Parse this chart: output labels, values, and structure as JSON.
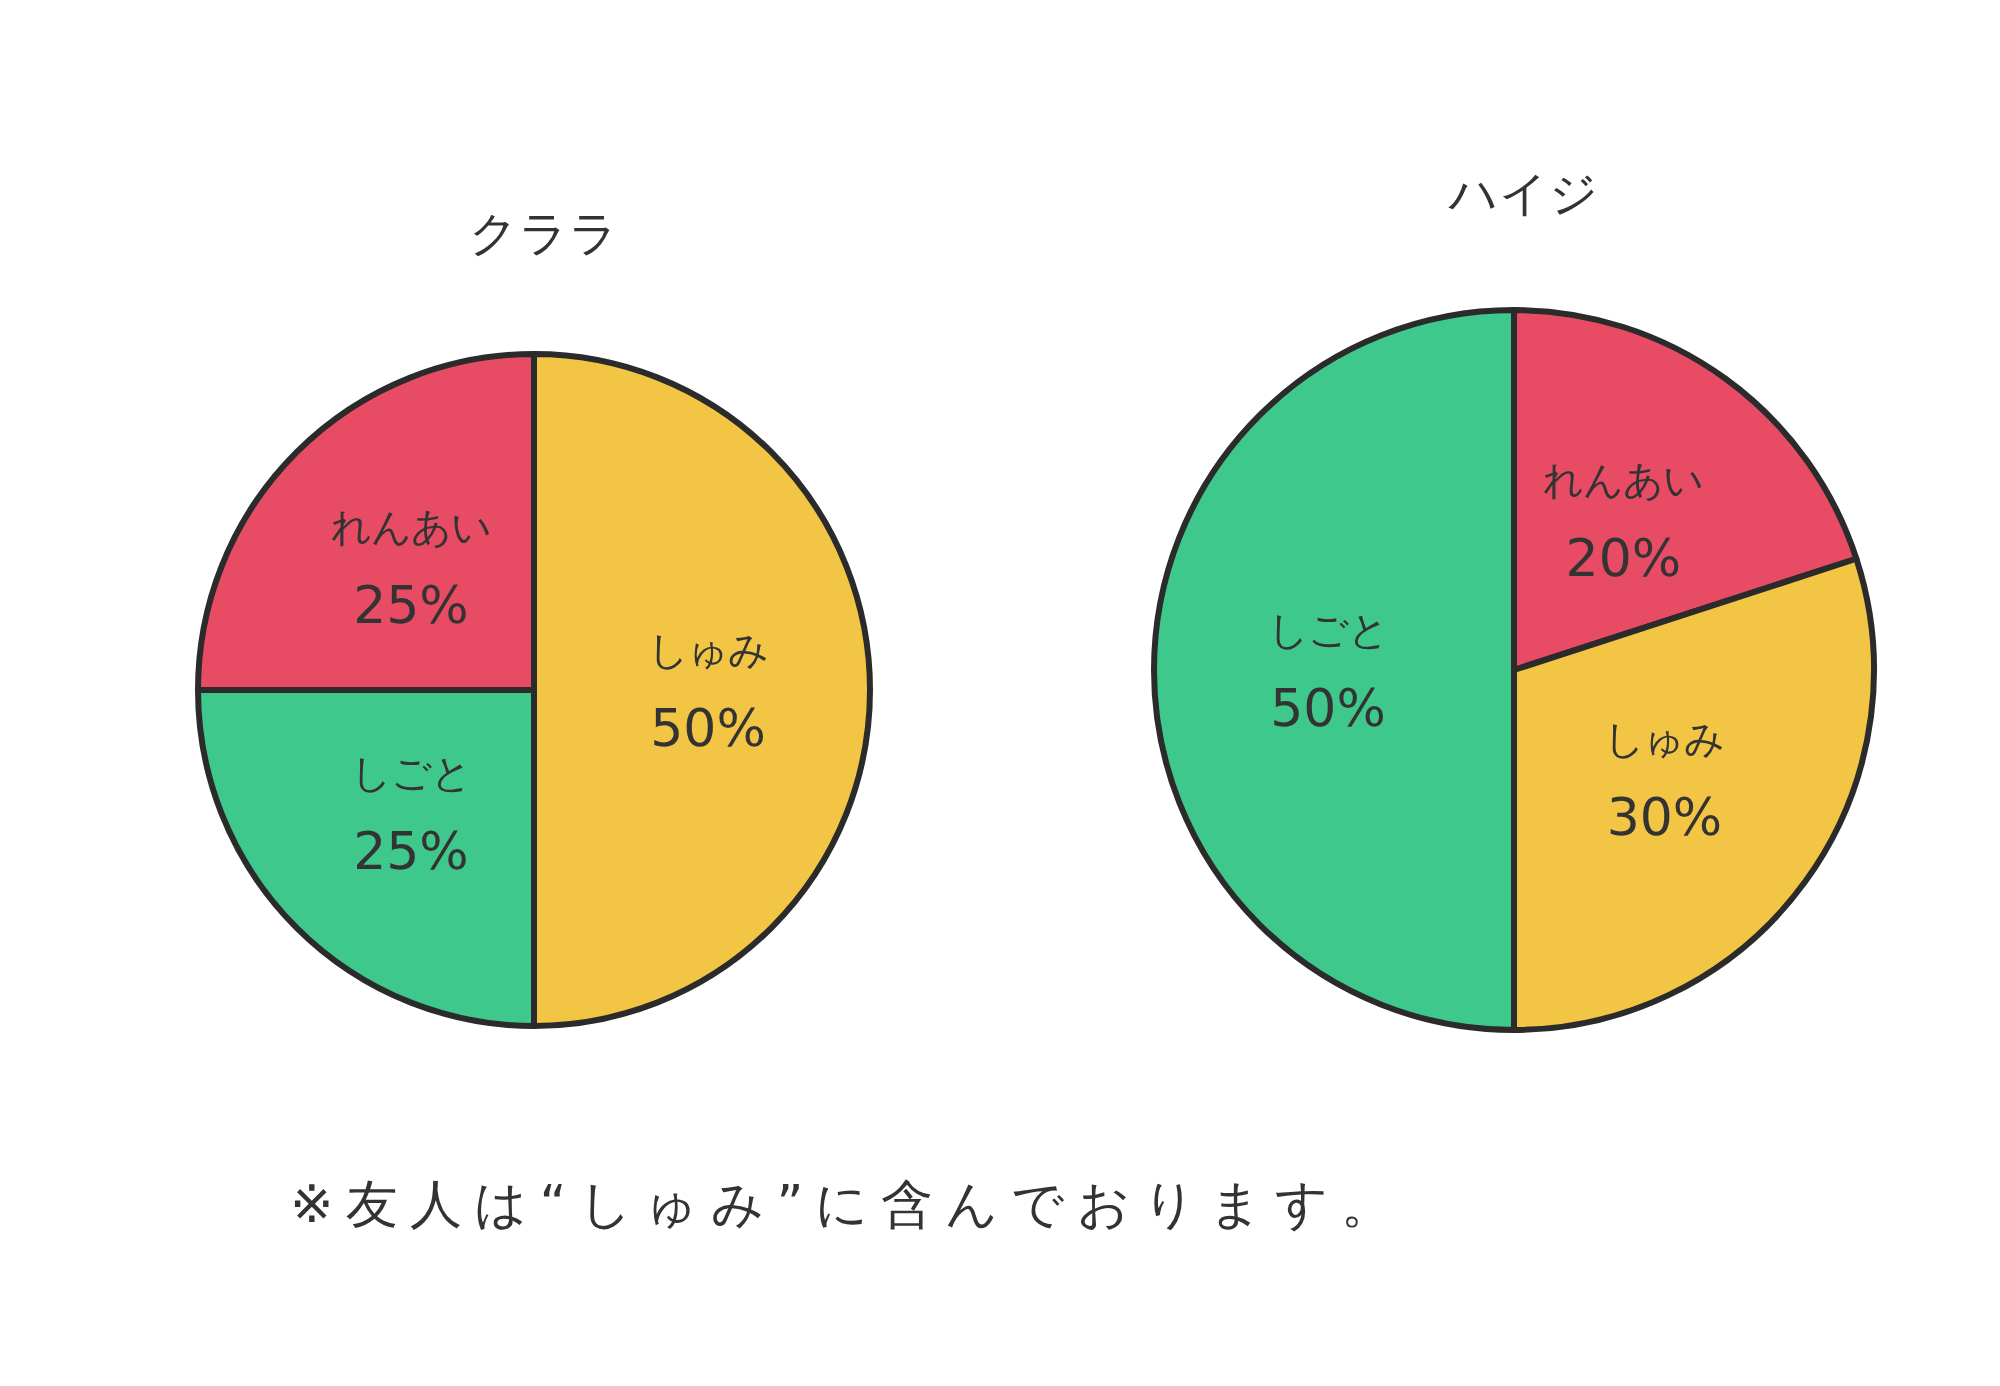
{
  "chart_data": [
    {
      "type": "pie",
      "title": "クララ",
      "categories": [
        "しゅみ",
        "しごと",
        "れんあい"
      ],
      "values": [
        50,
        25,
        25
      ],
      "colors": [
        "#f3c544",
        "#3fc88c",
        "#e84c64"
      ],
      "value_labels": [
        "50%",
        "25%",
        "25%"
      ],
      "annotations": [
        "※友人は“しゅみ”に含んでおります。"
      ]
    },
    {
      "type": "pie",
      "title": "ハイジ",
      "categories": [
        "れんあい",
        "しゅみ",
        "しごと"
      ],
      "values": [
        20,
        30,
        50
      ],
      "colors": [
        "#e84c64",
        "#f3c544",
        "#3fc88c"
      ],
      "value_labels": [
        "20%",
        "30%",
        "50%"
      ]
    }
  ]
}
